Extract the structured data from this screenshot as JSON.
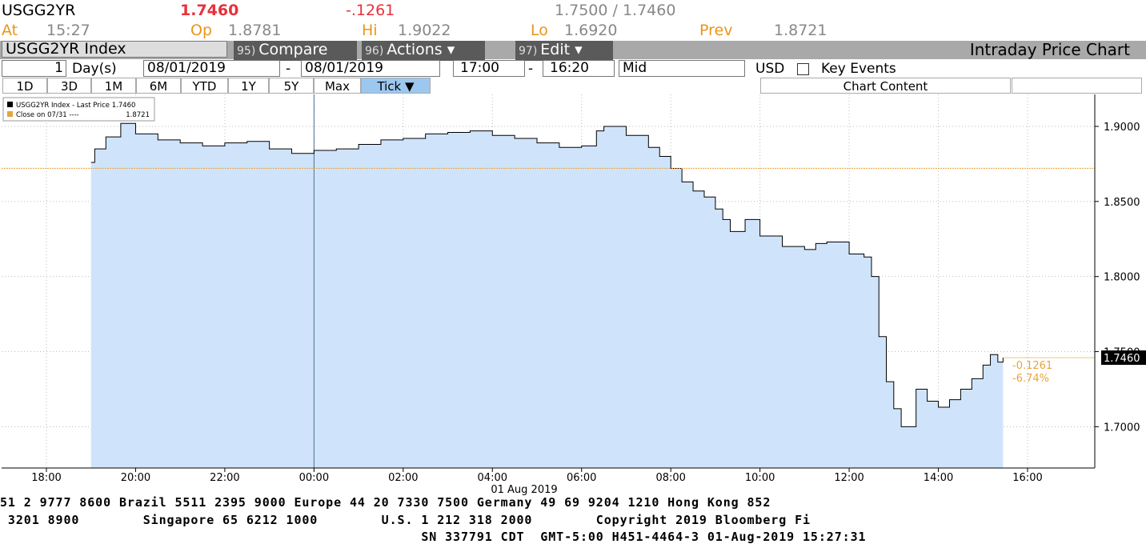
{
  "header": {
    "ticker": "USGG2YR",
    "last": "1.7460",
    "change": "-.1261",
    "bid_ask": "1.7500 / 1.7460",
    "stats": [
      {
        "label": "At",
        "value": "15:27"
      },
      {
        "label": "Op",
        "value": "1.8781"
      },
      {
        "label": "Hi",
        "value": "1.9022"
      },
      {
        "label": "Lo",
        "value": "1.6920"
      },
      {
        "label": "Prev",
        "value": "1.8721"
      }
    ]
  },
  "toolbar": {
    "security": "USGG2YR Index",
    "menus": [
      {
        "num": "95)",
        "label": "Compare"
      },
      {
        "num": "96)",
        "label": "Actions ▾"
      },
      {
        "num": "97)",
        "label": "Edit ▾"
      }
    ],
    "title": "Intraday Price Chart"
  },
  "range": {
    "count": "1",
    "unit": "Day(s)",
    "start_date": "08/01/2019",
    "end_date": "08/01/2019",
    "start_time": "17:00",
    "end_time": "16:20",
    "field": "Mid",
    "currency": "USD",
    "key_events": "Key Events"
  },
  "periods": [
    "1D",
    "3D",
    "1M",
    "6M",
    "YTD",
    "1Y",
    "5Y",
    "Max",
    "Tick ▼"
  ],
  "chart_content": "Chart Content",
  "chart_data": {
    "type": "line",
    "x": [
      "19:00",
      "19:05",
      "19:20",
      "19:40",
      "20:00",
      "20:30",
      "21:00",
      "21:30",
      "22:00",
      "22:30",
      "23:00",
      "23:30",
      "00:00",
      "00:30",
      "01:00",
      "01:30",
      "02:00",
      "02:30",
      "03:00",
      "03:30",
      "04:00",
      "04:30",
      "05:00",
      "05:30",
      "06:00",
      "06:20",
      "06:30",
      "07:00",
      "07:30",
      "07:45",
      "08:00",
      "08:15",
      "08:30",
      "08:45",
      "09:00",
      "09:10",
      "09:20",
      "09:40",
      "10:00",
      "10:30",
      "11:00",
      "11:15",
      "11:30",
      "12:00",
      "12:20",
      "12:30",
      "12:40",
      "12:50",
      "13:00",
      "13:10",
      "13:30",
      "13:45",
      "14:00",
      "14:15",
      "14:30",
      "14:45",
      "15:00",
      "15:10",
      "15:20",
      "15:27"
    ],
    "series": [
      {
        "name": "USGG2YR Index - Last Price 1.7460",
        "color": "#000000",
        "fill": "#cfe4fa",
        "values": [
          1.876,
          1.885,
          1.893,
          1.902,
          1.895,
          1.891,
          1.889,
          1.887,
          1.889,
          1.89,
          1.885,
          1.882,
          1.884,
          1.885,
          1.888,
          1.891,
          1.892,
          1.895,
          1.896,
          1.897,
          1.894,
          1.892,
          1.889,
          1.886,
          1.887,
          1.897,
          1.9,
          1.894,
          1.886,
          1.88,
          1.872,
          1.863,
          1.857,
          1.853,
          1.845,
          1.838,
          1.83,
          1.838,
          1.827,
          1.82,
          1.818,
          1.822,
          1.823,
          1.815,
          1.813,
          1.8,
          1.76,
          1.73,
          1.712,
          1.7,
          1.725,
          1.717,
          1.713,
          1.718,
          1.725,
          1.732,
          1.741,
          1.748,
          1.743,
          1.746
        ]
      }
    ],
    "reference": {
      "label": "Close on 07/31 ----",
      "value_label": "1.8721",
      "value": 1.8721,
      "color": "#e8a33c"
    },
    "last_label": "1.7460",
    "annotations": [
      "-0.1261",
      "-6.74%"
    ],
    "xticks": [
      "18:00",
      "20:00",
      "22:00",
      "00:00",
      "02:00",
      "04:00",
      "06:00",
      "08:00",
      "10:00",
      "12:00",
      "14:00",
      "16:00"
    ],
    "date_label": "01 Aug 2019",
    "ylim": [
      1.6725,
      1.9213
    ],
    "yticks": [
      {
        "value": 1.7,
        "label": "1.7000"
      },
      {
        "value": 1.75,
        "label": "1.7500"
      },
      {
        "value": 1.8,
        "label": "1.8000"
      },
      {
        "value": 1.85,
        "label": "1.8500"
      },
      {
        "value": 1.9,
        "label": "1.9000"
      }
    ],
    "grid": true
  },
  "footer": [
    "51 2 9777 8600 Brazil 5511 2395 9000 Europe 44 20 7330 7500 Germany 49 69 9204 1210 Hong Kong 852",
    " 3201 8900        Singapore 65 6212 1000        U.S. 1 212 318 2000        Copyright 2019 Bloomberg Fi",
    "                                                     SN 337791 CDT  GMT-5:00 H451-4464-3 01-Aug-2019 15:27:31"
  ]
}
